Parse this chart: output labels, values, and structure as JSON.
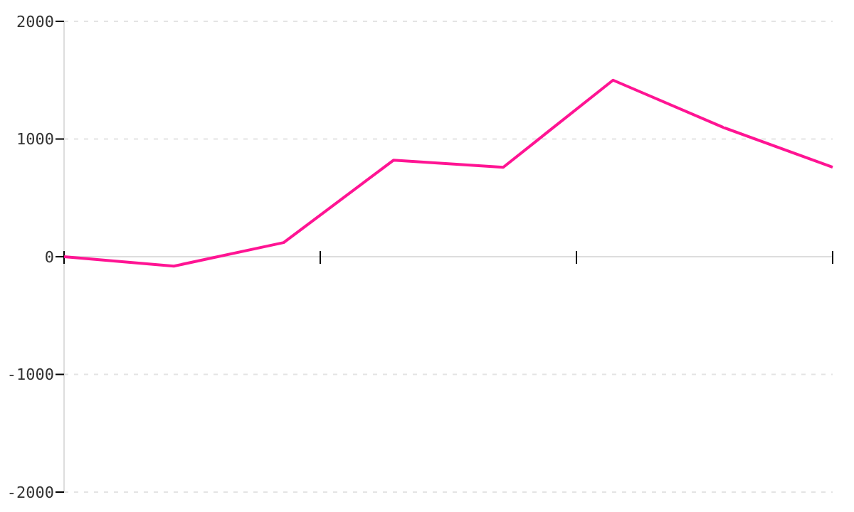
{
  "chart_data": {
    "type": "line",
    "categories": [
      null,
      null,
      null,
      null,
      null,
      null,
      null,
      null
    ],
    "series": [
      {
        "color": "#ff1493",
        "values": [
          0,
          -80,
          120,
          820,
          760,
          1500,
          1100,
          760
        ]
      }
    ],
    "ylim": [
      -2000,
      2000
    ],
    "yticks": [
      -2000,
      -1000,
      0,
      1000,
      2000
    ],
    "grid": "y",
    "tick_labels": "y",
    "marker": "none",
    "line_style": "solid"
  }
}
